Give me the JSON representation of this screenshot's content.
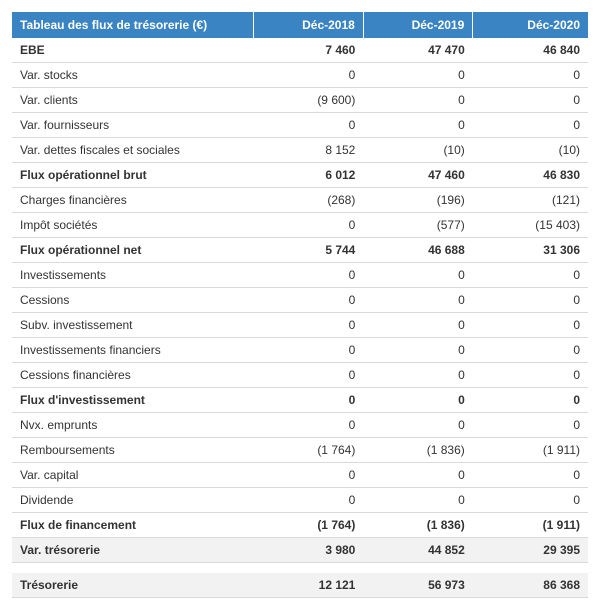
{
  "table": {
    "header_bg": "#3a84c4",
    "header_color": "#ffffff",
    "row_border_color": "#d9d9d9",
    "header_border_color": "#ffffff",
    "total_bg": "#f2f2f2",
    "col_widths": [
      "42%",
      "19%",
      "19%",
      "20%"
    ],
    "columns": [
      "Tableau des flux de trésorerie (€)",
      "Déc-2018",
      "Déc-2019",
      "Déc-2020"
    ],
    "rows": [
      {
        "bold": true,
        "cells": [
          "EBE",
          "7 460",
          "47 470",
          "46 840"
        ]
      },
      {
        "bold": false,
        "cells": [
          "Var. stocks",
          "0",
          "0",
          "0"
        ]
      },
      {
        "bold": false,
        "cells": [
          "Var. clients",
          "(9 600)",
          "0",
          "0"
        ]
      },
      {
        "bold": false,
        "cells": [
          "Var. fournisseurs",
          "0",
          "0",
          "0"
        ]
      },
      {
        "bold": false,
        "cells": [
          "Var. dettes fiscales et sociales",
          "8 152",
          "(10)",
          "(10)"
        ]
      },
      {
        "bold": true,
        "cells": [
          "Flux opérationnel brut",
          "6 012",
          "47 460",
          "46 830"
        ]
      },
      {
        "bold": false,
        "cells": [
          "Charges financières",
          "(268)",
          "(196)",
          "(121)"
        ]
      },
      {
        "bold": false,
        "cells": [
          "Impôt sociétés",
          "0",
          "(577)",
          "(15 403)"
        ]
      },
      {
        "bold": true,
        "cells": [
          "Flux opérationnel net",
          "5 744",
          "46 688",
          "31 306"
        ]
      },
      {
        "bold": false,
        "cells": [
          "Investissements",
          "0",
          "0",
          "0"
        ]
      },
      {
        "bold": false,
        "cells": [
          "Cessions",
          "0",
          "0",
          "0"
        ]
      },
      {
        "bold": false,
        "cells": [
          "Subv. investissement",
          "0",
          "0",
          "0"
        ]
      },
      {
        "bold": false,
        "cells": [
          "Investissements financiers",
          "0",
          "0",
          "0"
        ]
      },
      {
        "bold": false,
        "cells": [
          "Cessions financières",
          "0",
          "0",
          "0"
        ]
      },
      {
        "bold": true,
        "cells": [
          "Flux d'investissement",
          "0",
          "0",
          "0"
        ]
      },
      {
        "bold": false,
        "cells": [
          "Nvx. emprunts",
          "0",
          "0",
          "0"
        ]
      },
      {
        "bold": false,
        "cells": [
          "Remboursements",
          "(1 764)",
          "(1 836)",
          "(1 911)"
        ]
      },
      {
        "bold": false,
        "cells": [
          "Var. capital",
          "0",
          "0",
          "0"
        ]
      },
      {
        "bold": false,
        "cells": [
          "Dividende",
          "0",
          "0",
          "0"
        ]
      },
      {
        "bold": true,
        "cells": [
          "Flux de financement",
          "(1 764)",
          "(1 836)",
          "(1 911)"
        ]
      },
      {
        "bold": true,
        "bg": "#f2f2f2",
        "cells": [
          "Var. trésorerie",
          "3 980",
          "44 852",
          "29 395"
        ]
      },
      {
        "spacer": true
      },
      {
        "bold": true,
        "bg": "#f2f2f2",
        "cells": [
          "Trésorerie",
          "12 121",
          "56 973",
          "86 368"
        ]
      }
    ]
  }
}
